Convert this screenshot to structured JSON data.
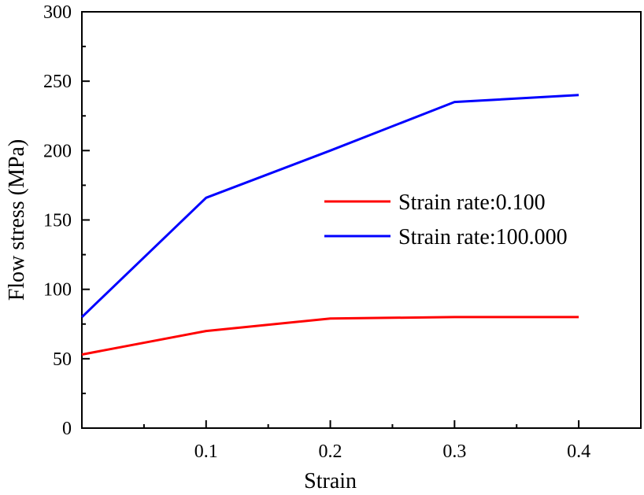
{
  "chart_data": {
    "type": "line",
    "title": "",
    "xlabel": "Strain",
    "ylabel": "Flow stress (MPa)",
    "xlim": [
      0,
      0.45
    ],
    "ylim": [
      0,
      300
    ],
    "x_major_ticks": [
      0.1,
      0.2,
      0.3,
      0.4
    ],
    "x_tick_labels": [
      "0.1",
      "0.2",
      "0.3",
      "0.4"
    ],
    "x_minor_ticks": [
      0.05,
      0.15,
      0.25,
      0.35
    ],
    "y_major_ticks": [
      0,
      50,
      100,
      150,
      200,
      250,
      300
    ],
    "y_tick_labels": [
      "0",
      "50",
      "100",
      "150",
      "200",
      "250",
      "300"
    ],
    "y_minor_ticks": [
      25,
      75,
      125,
      175,
      225,
      275
    ],
    "grid": false,
    "legend_position": "center-right",
    "x": [
      0,
      0.1,
      0.2,
      0.3,
      0.4
    ],
    "series": [
      {
        "name": "Strain rate:0.100",
        "color": "#ff0000",
        "values": [
          53,
          70,
          79,
          80,
          80
        ]
      },
      {
        "name": "Strain rate:100.000",
        "color": "#0000ff",
        "values": [
          80,
          166,
          200,
          235,
          240
        ]
      }
    ]
  }
}
